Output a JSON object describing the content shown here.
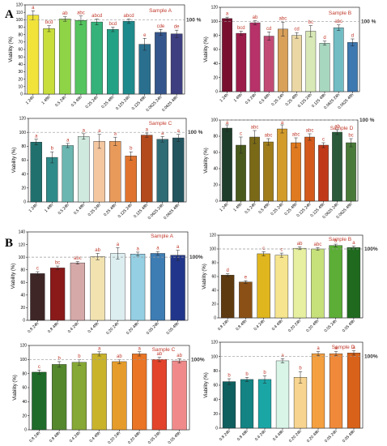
{
  "panel_letters": [
    "A",
    "B"
  ],
  "colors": {
    "title": "#c0392b",
    "significance_letter": "#c0392b",
    "reference_line": "#999999",
    "reference_text": "#333333"
  },
  "chart_data": [
    {
      "type": "bar",
      "title": "Sample A",
      "ylabel": "Viability (%)",
      "ylim": [
        0,
        120
      ],
      "yticks": [
        "0",
        "10",
        "20",
        "30",
        "40",
        "50",
        "60",
        "70",
        "80",
        "90",
        "100",
        "110",
        "120"
      ],
      "reference_line": 100,
      "reference_label": "100 %",
      "categories": [
        "1 24h",
        "1 48h",
        "0.5 24h",
        "0.5 48h",
        "0.25 24h",
        "0.25 48h",
        "0.125 24h",
        "0.125 48h",
        "0.0625 24h",
        "0.0625 48h"
      ],
      "values": [
        106,
        88,
        101,
        99,
        97,
        87,
        98,
        67,
        83,
        81
      ],
      "errors": [
        6,
        4,
        3,
        6,
        4,
        3,
        3,
        8,
        4,
        5
      ],
      "letters": [
        "a",
        "bcd",
        "ab",
        "abc",
        "abcd",
        "bcd",
        "abcd",
        "e",
        "cde",
        "de"
      ],
      "bar_colors": [
        "#f1e33a",
        "#c8de3a",
        "#8fd347",
        "#55c45f",
        "#35b27a",
        "#22a185",
        "#1e8a8b",
        "#2a6f8e",
        "#35568c",
        "#3e3f80"
      ]
    },
    {
      "type": "bar",
      "title": "Sample B",
      "ylabel": "Viability (%)",
      "ylim": [
        0,
        120
      ],
      "yticks": [
        "0",
        "20",
        "40",
        "60",
        "80",
        "100",
        "120"
      ],
      "reference_line": 100,
      "reference_label": "100 %",
      "categories": [
        "1 24h",
        "1 48h",
        "0.5 24h",
        "0.5 48h",
        "0.25 24h",
        "0.25 48h",
        "0.125 24h",
        "0.125 48h",
        "0.0625 24h",
        "0.0625 48h"
      ],
      "values": [
        104,
        83,
        98,
        79,
        89,
        80,
        86,
        69,
        91,
        70
      ],
      "errors": [
        2,
        3,
        3,
        6,
        10,
        4,
        8,
        3,
        4,
        5
      ],
      "letters": [
        "a",
        "bcd",
        "ab",
        "cd",
        "abc",
        "cd",
        "bc",
        "d",
        "abc",
        "d"
      ],
      "bar_colors": [
        "#7a1030",
        "#9c1d4a",
        "#b63268",
        "#c14b75",
        "#d9a05a",
        "#ead7a4",
        "#d8e8b6",
        "#a8d7c0",
        "#72bcc4",
        "#3d78b0"
      ]
    },
    {
      "type": "bar",
      "title": "Sample C",
      "ylabel": "Viability (%)",
      "ylim": [
        0,
        120
      ],
      "yticks": [
        "0",
        "20",
        "40",
        "60",
        "80",
        "100",
        "120"
      ],
      "reference_line": 100,
      "reference_label": "100 %",
      "categories": [
        "1 24h",
        "1 48h",
        "0.5 24h",
        "0.5 48h",
        "0.25 24h",
        "0.25 48h",
        "0.125 24h",
        "0.125 48h",
        "0.0625 24h",
        "0.0625 48h"
      ],
      "values": [
        86,
        64,
        81,
        94,
        87,
        87,
        66,
        96,
        90,
        92
      ],
      "errors": [
        4,
        8,
        3,
        4,
        10,
        6,
        6,
        3,
        4,
        5
      ],
      "letters": [
        "a",
        "b",
        "a",
        "a",
        "a",
        "a",
        "b",
        "a",
        "a",
        "a"
      ],
      "bar_colors": [
        "#20706e",
        "#2f8b89",
        "#6bb6b0",
        "#cfe9de",
        "#f4c7a0",
        "#e89a5b",
        "#e0742e",
        "#b34a1d",
        "#2e6b75",
        "#23555f"
      ]
    },
    {
      "type": "bar",
      "title": "Sample D",
      "ylabel": "Viability (%)",
      "ylim": [
        0,
        100
      ],
      "yticks": [
        "0",
        "20",
        "40",
        "60",
        "80",
        "100"
      ],
      "reference_line": 100,
      "reference_label": "100 %",
      "categories": [
        "1 24h",
        "1 48h",
        "0.5 24h",
        "0.5 48h",
        "0.25 24h",
        "0.25 48h",
        "0.125 24h",
        "0.125 48h",
        "0.0625 24h",
        "0.0625 48h"
      ],
      "values": [
        90,
        69,
        79,
        73,
        89,
        72,
        79,
        69,
        85,
        72
      ],
      "errors": [
        4,
        10,
        8,
        4,
        5,
        6,
        4,
        3,
        3,
        5
      ],
      "letters": [
        "a",
        "c",
        "abc",
        "abc",
        "a",
        "abc",
        "abc",
        "c",
        "ab",
        "bc"
      ],
      "bar_colors": [
        "#1e3d2b",
        "#4a5a1c",
        "#7a6a18",
        "#a07d1a",
        "#d39b2a",
        "#e07a20",
        "#d35a1c",
        "#c03a1a",
        "#2a5a3a",
        "#4a7a3a"
      ]
    },
    {
      "type": "bar",
      "title": "Sample A",
      "ylabel": "Viability (%)",
      "ylim": [
        0,
        140
      ],
      "yticks": [
        "0",
        "20",
        "40",
        "60",
        "80",
        "100",
        "120",
        "140"
      ],
      "reference_line": 100,
      "reference_label": "100%",
      "categories": [
        "0.8 24h",
        "0.8 48h",
        "0.4 24h",
        "0.4 48h",
        "0.20 24h",
        "0.20 48h",
        "0.05 24h",
        "0.05 48h"
      ],
      "values": [
        74,
        83,
        91,
        101,
        106,
        105,
        106,
        103
      ],
      "errors": [
        3,
        3,
        2,
        5,
        9,
        3,
        3,
        8
      ],
      "letters": [
        "c",
        "bc",
        "abc",
        "ab",
        "a",
        "a",
        "a",
        "a"
      ],
      "bar_colors": [
        "#3e2626",
        "#8a1a1a",
        "#d6a9a9",
        "#f1e2b0",
        "#ddeef1",
        "#95cfe3",
        "#3d7db4",
        "#21368a"
      ]
    },
    {
      "type": "bar",
      "title": "Sample B",
      "ylabel": "Viability (%)",
      "ylim": [
        0,
        120
      ],
      "yticks": [
        "0",
        "20",
        "40",
        "60",
        "80",
        "100",
        "120"
      ],
      "reference_line": 100,
      "reference_label": "100%",
      "categories": [
        "0.8 24h",
        "0.8 48h",
        "0.4 24h",
        "0.4 48h",
        "0.20 24h",
        "0.20 48h",
        "0.05 24h",
        "0.05 48h"
      ],
      "values": [
        62,
        52,
        93,
        91,
        101,
        100,
        105,
        102
      ],
      "errors": [
        2,
        2,
        3,
        3,
        2,
        2,
        2,
        2
      ],
      "letters": [
        "d",
        "e",
        "c",
        "c",
        "ab",
        "abc",
        "a",
        "a"
      ],
      "bar_colors": [
        "#5e3a10",
        "#8a5016",
        "#e0b61f",
        "#f6e58e",
        "#e6f0a0",
        "#c6e07a",
        "#5cae36",
        "#1f6a1f"
      ]
    },
    {
      "type": "bar",
      "title": "Sample C",
      "ylabel": "Viability (%)",
      "ylim": [
        0,
        120
      ],
      "yticks": [
        "0",
        "20",
        "40",
        "60",
        "80",
        "100",
        "120"
      ],
      "reference_line": 100,
      "reference_label": "100%",
      "categories": [
        "0.8 24h",
        "0.8 48h",
        "0.4 24h",
        "0.4 48h",
        "0.20 24h",
        "0.20 48h",
        "0.05 24h",
        "0.05 48h"
      ],
      "values": [
        82,
        93,
        96,
        108,
        97,
        108,
        100,
        98
      ],
      "errors": [
        3,
        4,
        4,
        3,
        3,
        3,
        3,
        3
      ],
      "letters": [
        "c",
        "b",
        "b",
        "a",
        "ab",
        "a",
        "ab",
        "ab"
      ],
      "bar_colors": [
        "#1f6b2a",
        "#55882d",
        "#86a834",
        "#c9b32b",
        "#e59c2b",
        "#e97525",
        "#e2432a",
        "#f08a8a"
      ]
    },
    {
      "type": "bar",
      "title": "Sample D",
      "ylabel": "Viability (%)",
      "ylim": [
        0,
        120
      ],
      "yticks": [
        "0",
        "20",
        "40",
        "60",
        "80",
        "100",
        "120"
      ],
      "reference_line": 100,
      "reference_label": "100%",
      "categories": [
        "0.8 24h",
        "0.8 48h",
        "0.4 24h",
        "0.4 48h",
        "0.20 24h",
        "0.20 48h",
        "0.05 24h",
        "0.05 48h"
      ],
      "values": [
        65,
        68,
        68,
        94,
        71,
        104,
        104,
        105
      ],
      "errors": [
        4,
        3,
        5,
        3,
        8,
        3,
        3,
        3
      ],
      "letters": [
        "b",
        "b",
        "b",
        "a",
        "b",
        "a",
        "a",
        "a"
      ],
      "bar_colors": [
        "#0f5f5f",
        "#138383",
        "#1ba6a6",
        "#d8f5e8",
        "#f7d48f",
        "#f5a040",
        "#f08a3a",
        "#d9621a"
      ]
    }
  ]
}
